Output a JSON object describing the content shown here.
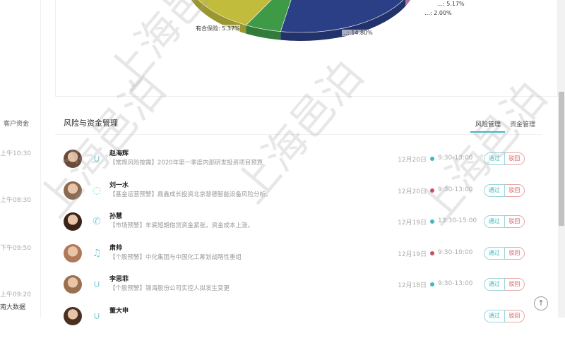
{
  "left_panel": {
    "title": "客户资金",
    "times": [
      "上午10:30",
      "上午08:30",
      "下午09:50",
      "上午09:20"
    ],
    "footer": "南大数据"
  },
  "chart_data": {
    "type": "pie",
    "slices": [
      {
        "label": "有合保险: 5.37%",
        "value": 5.37,
        "color": "#3f9a48"
      },
      {
        "label": "…: 14.80%",
        "value": 14.8,
        "color": "#2b3f86"
      },
      {
        "label": "…: 5.17%",
        "value": 5.17,
        "color": "#d83b35"
      },
      {
        "label": "…: 2.00%",
        "value": 2.0,
        "color": "#d88cc0"
      },
      {
        "label": "",
        "color": "#c1bc3c"
      }
    ]
  },
  "section": {
    "title": "风险与资金管理",
    "tabs": [
      {
        "label": "风险管理",
        "active": true
      },
      {
        "label": "资金管理",
        "active": false
      }
    ]
  },
  "colors": {
    "accent": "#3fb8c0",
    "danger": "#d05a5a"
  },
  "rows": [
    {
      "name": "赵海辉",
      "icon": "magnet-icon",
      "desc": "【常规风险按需】2020年第一季度内部研发投资项目预算",
      "date": "12月20日",
      "status": "#3fb8c0",
      "time": "9:30-13:00",
      "pass": "通过",
      "reject": "驳回",
      "avatar": "#6b4a3a"
    },
    {
      "name": "刘一水",
      "icon": "chat-icon",
      "desc": "【基金运营预警】鼎鑫成长投资北京慧德智能设备风险分析。",
      "date": "12月20日",
      "status": "#c9505f",
      "time": "9:30-13:00",
      "pass": "通过",
      "reject": "驳回",
      "avatar": "#8a6a50"
    },
    {
      "name": "孙慧",
      "icon": "phone-icon",
      "desc": "【市场预警】年底短期借贷资金紧张，资金成本上涨。",
      "date": "12月19日",
      "status": "#3fb8c0",
      "time": "13:30-15:00",
      "pass": "通过",
      "reject": "驳回",
      "avatar": "#3a2418"
    },
    {
      "name": "肃帅",
      "icon": "bell-icon",
      "desc": "【个股预警】中化集团与中国化工筹划战略性重组",
      "date": "12月19日",
      "status": "#c9505f",
      "time": "9:30-10:00",
      "pass": "通过",
      "reject": "驳回",
      "avatar": "#b07a5a"
    },
    {
      "name": "李思菲",
      "icon": "magnet-icon",
      "desc": "【个股预警】锦海股份公司实控人拟发生变更",
      "date": "12月18日",
      "status": "#3fb8c0",
      "time": "9:30-13:00",
      "pass": "通过",
      "reject": "驳回",
      "avatar": "#9a7050"
    },
    {
      "name": "董大申",
      "icon": "magnet-icon",
      "desc": "",
      "date": "",
      "status": "#3fb8c0",
      "time": "",
      "pass": "通过",
      "reject": "驳回",
      "avatar": "#4a3020"
    }
  ],
  "watermark": "上海邑泊",
  "back_to_top": "↑"
}
